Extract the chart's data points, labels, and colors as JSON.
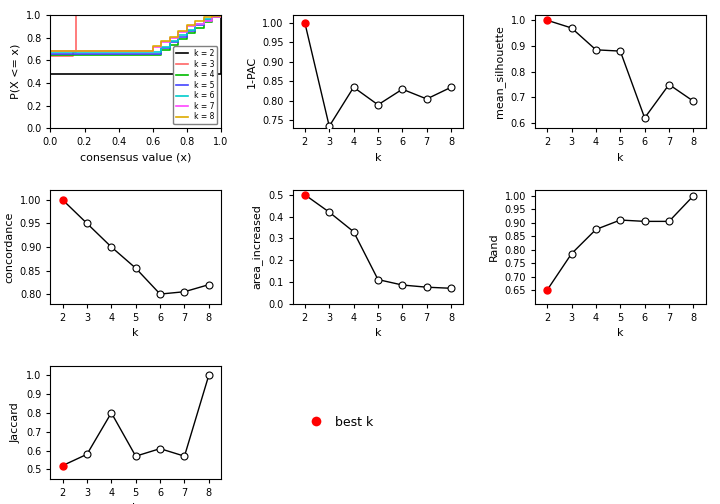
{
  "k_values": [
    2,
    3,
    4,
    5,
    6,
    7,
    8
  ],
  "pac_1minus": [
    1.0,
    0.735,
    0.835,
    0.79,
    0.83,
    0.805,
    0.835
  ],
  "mean_silhouette": [
    1.0,
    0.97,
    0.885,
    0.88,
    0.62,
    0.75,
    0.685
  ],
  "concordance": [
    1.0,
    0.95,
    0.9,
    0.855,
    0.8,
    0.805,
    0.82
  ],
  "area_increased": [
    0.5,
    0.42,
    0.33,
    0.11,
    0.085,
    0.075,
    0.07
  ],
  "rand": [
    0.65,
    0.785,
    0.875,
    0.91,
    0.905,
    0.905,
    1.0
  ],
  "jaccard": [
    0.52,
    0.58,
    0.8,
    0.57,
    0.61,
    0.57,
    1.0
  ],
  "best_k": 2,
  "ecdf_colors": {
    "k2": "#000000",
    "k3": "#FF6666",
    "k4": "#00BB00",
    "k5": "#4444FF",
    "k6": "#00CCCC",
    "k7": "#FF44FF",
    "k8": "#DDAA00"
  },
  "line_color": "#000000",
  "best_k_color": "#FF0000",
  "bg_color": "#FFFFFF",
  "axis_label_fontsize": 8,
  "tick_fontsize": 7
}
